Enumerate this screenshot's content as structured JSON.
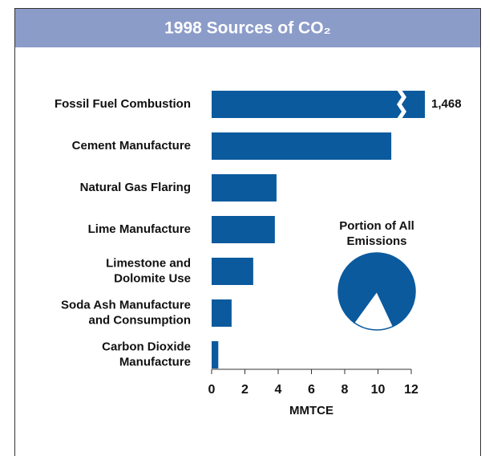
{
  "chart_data": [
    {
      "type": "hbar",
      "title": "1998 Sources of CO₂",
      "categories": [
        [
          "Fossil Fuel Combustion"
        ],
        [
          "Cement Manufacture"
        ],
        [
          "Natural Gas Flaring"
        ],
        [
          "Lime Manufacture"
        ],
        [
          "Limestone and",
          "Dolomite Use"
        ],
        [
          "Soda Ash Manufacture",
          "and Consumption"
        ],
        [
          "Carbon Dioxide",
          "Manufacture"
        ]
      ],
      "values": [
        1468,
        10.8,
        3.9,
        3.8,
        2.5,
        1.2,
        0.4
      ],
      "value_labels": [
        "1,468",
        null,
        null,
        null,
        null,
        null,
        null
      ],
      "color": "#0b5a9e",
      "xlim": [
        0,
        12
      ],
      "xticks": [
        0,
        2,
        4,
        6,
        8,
        10,
        12
      ],
      "xlabel": "MMTCE"
    },
    {
      "type": "pie",
      "title": [
        "Portion of All",
        "Emissions"
      ],
      "values": [
        83,
        17
      ],
      "colors": [
        "#0b5a9e",
        "#ffffff"
      ]
    }
  ]
}
